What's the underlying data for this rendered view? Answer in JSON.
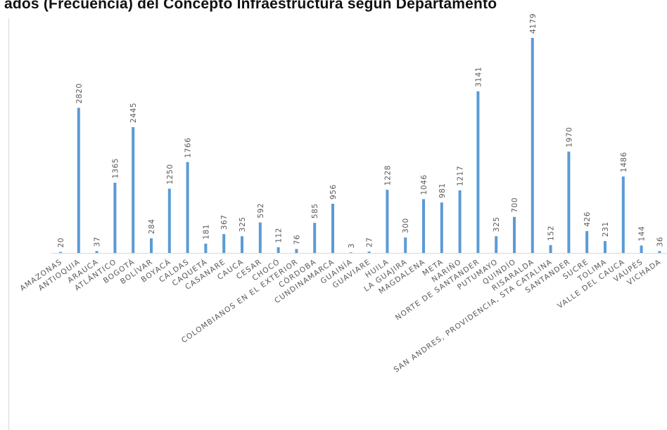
{
  "chart_data": {
    "type": "bar",
    "title": "ados (Frecuencia) del Concepto Infraestructura según Departamento",
    "categories": [
      "AMAZONAS",
      "ANTIOQUIA",
      "ARAUCA",
      "ATLÁNTICO",
      "BOGOTÁ",
      "BOLÍVAR",
      "BOYACÁ",
      "CALDAS",
      "CAQUETÁ",
      "CASANARE",
      "CAUCA",
      "CESAR",
      "CHOCÓ",
      "COLOMBIANOS EN EL EXTERIOR",
      "CÓRDOBA",
      "CUNDINAMARCA",
      "GUAINÍA",
      "GUAVIARE",
      "HUILA",
      "LA GUAJIRA",
      "MAGDALENA",
      "META",
      "NARIÑO",
      "NORTE DE SANTANDER",
      "PUTUMAYO",
      "QUINDÍO",
      "RISARALDA",
      "SAN ANDRES, PROVIDENCIA, STA CATALINA",
      "SANTANDER",
      "SUCRE",
      "TOLIMA",
      "VALLE DEL CAUCA",
      "VAUPÉS",
      "VICHADA"
    ],
    "values": [
      20,
      2820,
      37,
      1365,
      2445,
      284,
      1250,
      1766,
      181,
      367,
      325,
      592,
      112,
      76,
      585,
      956,
      3,
      27,
      1228,
      300,
      1046,
      981,
      1217,
      3141,
      325,
      700,
      4179,
      152,
      1970,
      426,
      231,
      1486,
      144,
      36
    ],
    "ylim": [
      0,
      4179
    ],
    "grid": false,
    "legend": "none",
    "bar_color": "#5b9bd5",
    "axis_color": "#d9d9d9",
    "label_color": "#595959"
  }
}
